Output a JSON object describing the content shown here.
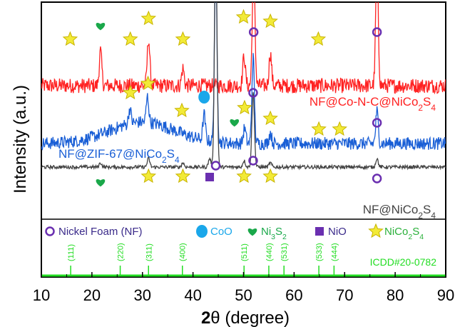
{
  "chart_data": {
    "type": "line",
    "xlabel_prefix": "2",
    "xlabel_symbol": "θ",
    "xlabel_suffix": " (degree)",
    "ylabel": "Intensity (a.u.)",
    "xlim": [
      10,
      90
    ],
    "x_ticks": [
      "10",
      "20",
      "30",
      "40",
      "50",
      "60",
      "70",
      "80",
      "90"
    ],
    "series": [
      {
        "name": "NF@Co-N-C@NiCo",
        "name_sub": "2",
        "name_post": "S",
        "name_sub2": "4",
        "color": "#ff2222",
        "baseline": 0.6,
        "noise": 0.035,
        "hump": 0.0,
        "peaks": [
          [
            21.7,
            0.16
          ],
          [
            31.2,
            0.22
          ],
          [
            38.0,
            0.08
          ],
          [
            50.1,
            0.14
          ],
          [
            52.0,
            0.6
          ],
          [
            55.3,
            0.15
          ],
          [
            76.4,
            0.6
          ]
        ]
      },
      {
        "name": "NF@ZIF-67@NiCo",
        "name_sub": "2",
        "name_post": "S",
        "name_sub2": "4",
        "color": "#1a5fd6",
        "baseline": 0.33,
        "noise": 0.03,
        "hump": 0.1,
        "peaks": [
          [
            27.5,
            0.07
          ],
          [
            31.0,
            0.12
          ],
          [
            42.2,
            0.12
          ],
          [
            44.5,
            0.85
          ],
          [
            50.2,
            0.07
          ],
          [
            51.9,
            0.4
          ],
          [
            55.3,
            0.05
          ],
          [
            76.4,
            0.15
          ]
        ]
      },
      {
        "name": "NF@NiCo",
        "name_sub": "2",
        "name_post": "S",
        "name_sub2": "4",
        "color": "#444444",
        "baseline": 0.22,
        "noise": 0.008,
        "hump": 0.0,
        "peaks": [
          [
            21.7,
            0.02
          ],
          [
            31.2,
            0.04
          ],
          [
            38.0,
            0.02
          ],
          [
            43.3,
            0.04
          ],
          [
            44.5,
            1.1
          ],
          [
            50.1,
            0.03
          ],
          [
            51.9,
            0.35
          ],
          [
            55.3,
            0.02
          ],
          [
            76.4,
            0.04
          ]
        ]
      }
    ],
    "markers": [
      {
        "shape": "star",
        "series": 0,
        "x": [
          15.7,
          27.6,
          31.2,
          38.0,
          50.0,
          55.3,
          64.8
        ]
      },
      {
        "shape": "heart",
        "series": 0,
        "x": [
          21.7
        ]
      },
      {
        "shape": "ring",
        "series": 0,
        "x": [
          52.0,
          76.4
        ]
      },
      {
        "shape": "star",
        "series": 1,
        "x": [
          27.6,
          31.1,
          37.8,
          50.2,
          55.3,
          64.9,
          69.0
        ]
      },
      {
        "shape": "circle",
        "series": 1,
        "x": [
          42.2
        ]
      },
      {
        "shape": "heart",
        "series": 1,
        "x": [
          48.2
        ]
      },
      {
        "shape": "ring",
        "series": 1,
        "x": [
          51.9,
          76.4
        ]
      },
      {
        "shape": "heart",
        "series": 2,
        "x": [
          21.7
        ]
      },
      {
        "shape": "star",
        "series": 2,
        "x": [
          31.2,
          38.0,
          50.1,
          55.3
        ]
      },
      {
        "shape": "square",
        "series": 2,
        "x": [
          43.3
        ]
      },
      {
        "shape": "ring",
        "series": 2,
        "x": [
          44.5,
          51.9,
          76.4
        ]
      }
    ],
    "legend": [
      {
        "shape": "ring",
        "color": "#6a2fb0",
        "text": "Nickel Foam (NF)",
        "sub": "",
        "post": "",
        "sub2": ""
      },
      {
        "shape": "circle",
        "color": "#1aa7ea",
        "text": "CoO",
        "sub": "",
        "post": "",
        "sub2": ""
      },
      {
        "shape": "heart",
        "color": "#1aa84a",
        "text": "Ni",
        "sub": "3",
        "post": "S",
        "sub2": "2"
      },
      {
        "shape": "square",
        "color": "#6a2fb0",
        "text": "NiO",
        "sub": "",
        "post": "",
        "sub2": ""
      },
      {
        "shape": "star",
        "color": "#f2ea37",
        "text": "NiCo",
        "sub": "2",
        "post": "S",
        "sub2": "4"
      }
    ],
    "reference": {
      "label": "ICDD#20-0782",
      "color": "#22dd22",
      "lines": [
        {
          "x": 15.8,
          "hkl": "(111)"
        },
        {
          "x": 25.6,
          "hkl": "(220)"
        },
        {
          "x": 31.2,
          "hkl": "(311)"
        },
        {
          "x": 37.9,
          "hkl": "(400)"
        },
        {
          "x": 50.1,
          "hkl": "(511)"
        },
        {
          "x": 55.0,
          "hkl": "(440)"
        },
        {
          "x": 58.0,
          "hkl": "(531)"
        },
        {
          "x": 64.9,
          "hkl": "(533)"
        },
        {
          "x": 67.9,
          "hkl": "(444)"
        }
      ]
    }
  }
}
